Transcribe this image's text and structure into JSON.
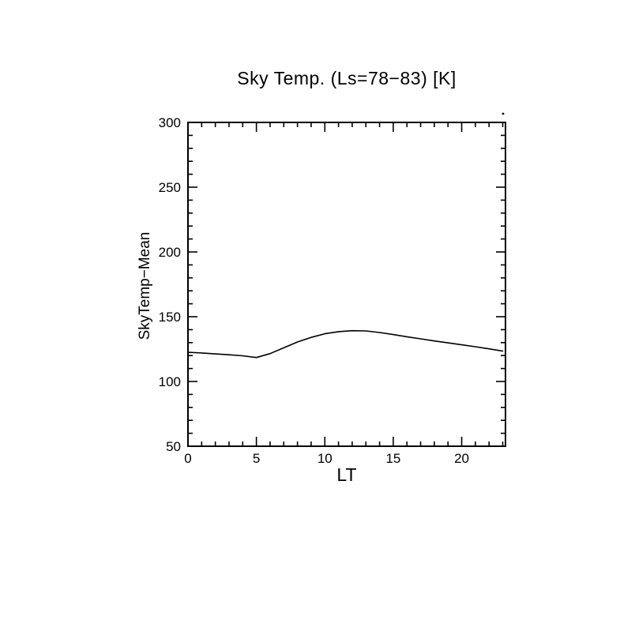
{
  "chart_data": {
    "type": "line",
    "title": "Sky Temp. (Ls=78−83) [K]",
    "xlabel": "LT",
    "ylabel": "SkyTemp−Mean",
    "x": [
      0,
      1,
      2,
      3,
      4,
      5,
      6,
      7,
      8,
      9,
      10,
      11,
      12,
      13,
      14,
      15,
      16,
      17,
      18,
      19,
      20,
      21,
      22,
      23
    ],
    "values": [
      122.5,
      122.0,
      121.3,
      120.6,
      119.8,
      118.5,
      121.5,
      126.0,
      130.5,
      134.0,
      136.8,
      138.5,
      139.2,
      139.0,
      137.8,
      136.2,
      134.5,
      132.9,
      131.3,
      129.8,
      128.3,
      126.8,
      125.2,
      123.5
    ],
    "xlim": [
      0,
      23.2
    ],
    "ylim": [
      50,
      300
    ],
    "xticks_major": [
      0,
      5,
      10,
      15,
      20
    ],
    "xtick_minor_step": 1,
    "yticks_major": [
      50,
      100,
      150,
      200,
      250,
      300
    ],
    "ytick_minor_step": 10,
    "grid": false,
    "legend": "none",
    "line_color": "#000000",
    "axis_color": "#000000",
    "background": "#ffffff"
  }
}
